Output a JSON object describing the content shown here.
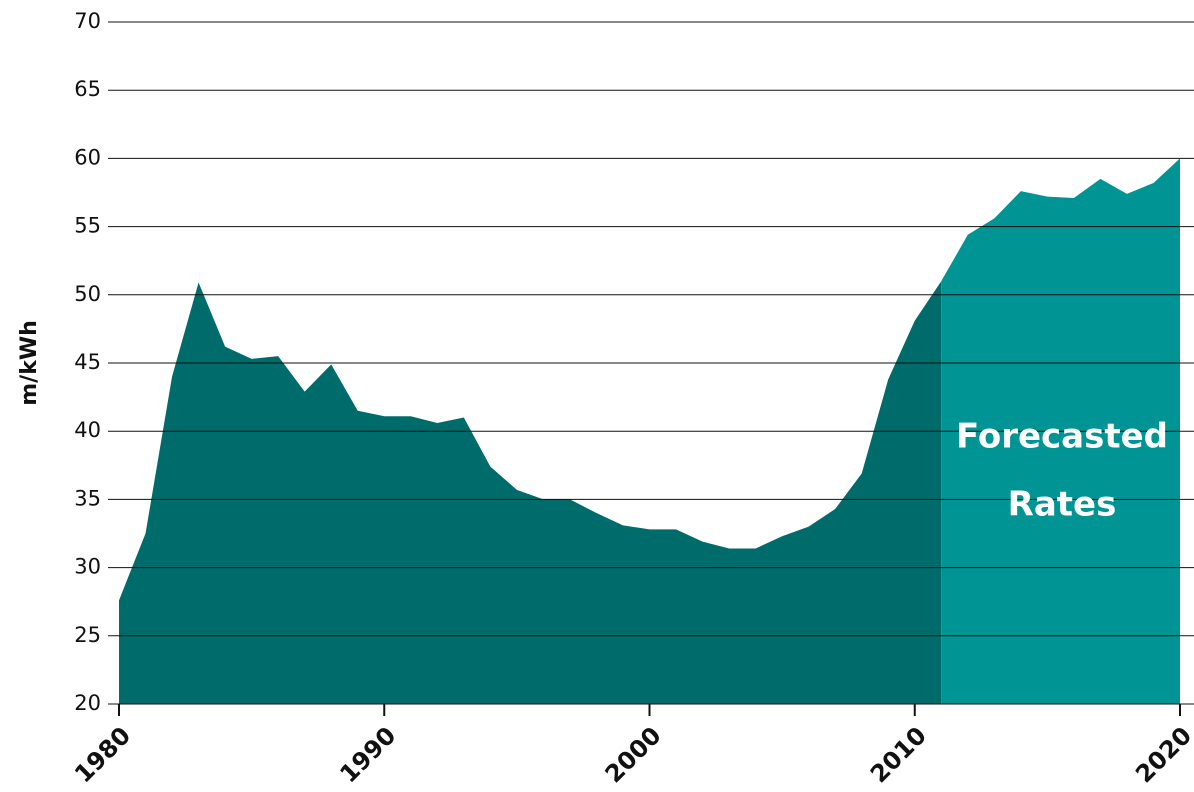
{
  "chart_data": {
    "type": "area",
    "y_label": "m/kWh",
    "annotation": [
      "Forecasted",
      "Rates"
    ],
    "x": [
      1980,
      1981,
      1982,
      1983,
      1984,
      1985,
      1986,
      1987,
      1988,
      1989,
      1990,
      1991,
      1992,
      1993,
      1994,
      1995,
      1996,
      1997,
      1998,
      1999,
      2000,
      2001,
      2002,
      2003,
      2004,
      2005,
      2006,
      2007,
      2008,
      2009,
      2010,
      2011,
      2012,
      2013,
      2014,
      2015,
      2016,
      2017,
      2018,
      2019,
      2020
    ],
    "series": [
      {
        "color": "#006b6b",
        "values": [
          27.6,
          32.5,
          44,
          50.9,
          46.2,
          45.3,
          45.5,
          42.9,
          44.9,
          41.5,
          41.1,
          41.1,
          40.6,
          41.0,
          37.4,
          35.7,
          35.0,
          35.0,
          34.0,
          33.1,
          32.8,
          32.8,
          31.9,
          31.4,
          31.4,
          32.3,
          33.0,
          34.3,
          36.9,
          43.8,
          48.1,
          51.0,
          null,
          null,
          null,
          null,
          null,
          null,
          null,
          null,
          null
        ]
      },
      {
        "color": "#009494",
        "values": [
          null,
          null,
          null,
          null,
          null,
          null,
          null,
          null,
          null,
          null,
          null,
          null,
          null,
          null,
          null,
          null,
          null,
          null,
          null,
          null,
          null,
          null,
          null,
          null,
          null,
          null,
          null,
          null,
          null,
          null,
          null,
          51.0,
          54.4,
          55.6,
          57.6,
          57.2,
          57.1,
          58.5,
          57.4,
          58.2,
          60.0
        ]
      }
    ],
    "xlim": [
      1980,
      2020
    ],
    "xticks": [
      1980,
      1990,
      2000,
      2010,
      2020
    ],
    "ylim": [
      20,
      70
    ],
    "yticks": [
      20,
      25,
      30,
      35,
      40,
      45,
      50,
      55,
      60,
      65,
      70
    ],
    "grid": true
  }
}
